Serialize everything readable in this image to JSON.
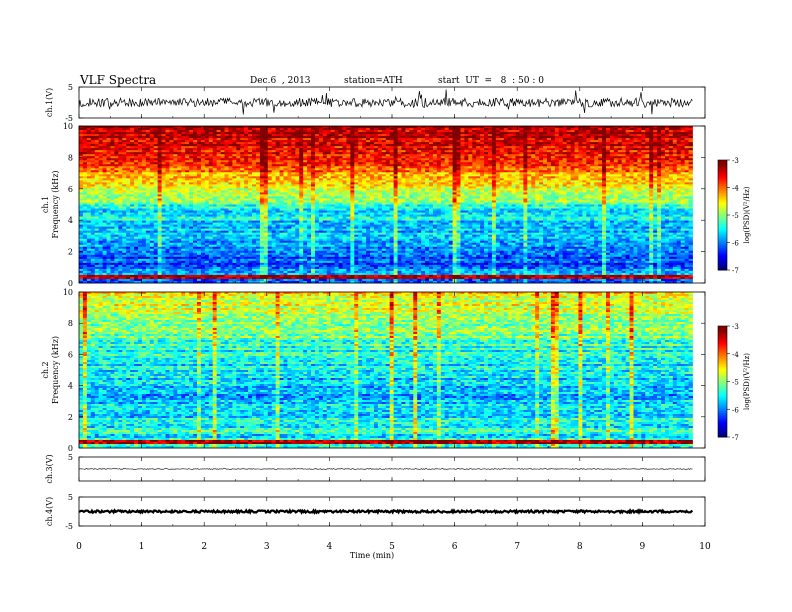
{
  "header": {
    "title": "VLF  Spectra",
    "date": "Dec.6  , 2013",
    "station": "station=ATH",
    "start": "start  UT  =   8  : 50 : 0"
  },
  "chart_data": {
    "type": "spectrogram",
    "xlabel": "Time  (min)",
    "xlim": [
      0,
      10
    ],
    "x_ticks": [
      "0",
      "1",
      "2",
      "3",
      "4",
      "5",
      "6",
      "7",
      "8",
      "9",
      "10"
    ],
    "data_end_min": 9.8,
    "panels": [
      {
        "name": "ch.1(V)",
        "type": "line",
        "ylabel": "ch.1(V)",
        "ylim": [
          -5,
          5
        ],
        "y_ticks": [
          "5",
          "-5"
        ]
      },
      {
        "name": "ch.1",
        "type": "heatmap",
        "ylabel_top": "ch.1",
        "ylabel": "Frequency  (kHz)",
        "ylim": [
          0,
          10
        ],
        "y_ticks": [
          "0",
          "2",
          "4",
          "6",
          "8",
          "10"
        ],
        "colorbar": {
          "label": "log(PSD)(V²/Hz)",
          "ticks": [
            "-3",
            "-4",
            "-5",
            "-6",
            "-7"
          ],
          "range": [
            -7,
            -3
          ]
        }
      },
      {
        "name": "ch.2",
        "type": "heatmap",
        "ylabel_top": "ch.2",
        "ylabel": "Frequency  (kHz)",
        "ylim": [
          0,
          10
        ],
        "y_ticks": [
          "0",
          "2",
          "4",
          "6",
          "8",
          "10"
        ],
        "colorbar": {
          "label": "log(PSD)(V²/Hz)",
          "ticks": [
            "-3",
            "-4",
            "-5",
            "-6",
            "-7"
          ],
          "range": [
            -7,
            -3
          ]
        }
      },
      {
        "name": "ch.3(V)",
        "type": "line",
        "ylabel": "ch.3(V)",
        "ylim": [
          -5,
          5
        ],
        "y_ticks": [
          "5"
        ]
      },
      {
        "name": "ch.4(V)",
        "type": "line",
        "ylabel": "ch.4(V)",
        "ylim": [
          -5,
          5
        ],
        "y_ticks": [
          "5",
          "-5"
        ]
      }
    ]
  }
}
